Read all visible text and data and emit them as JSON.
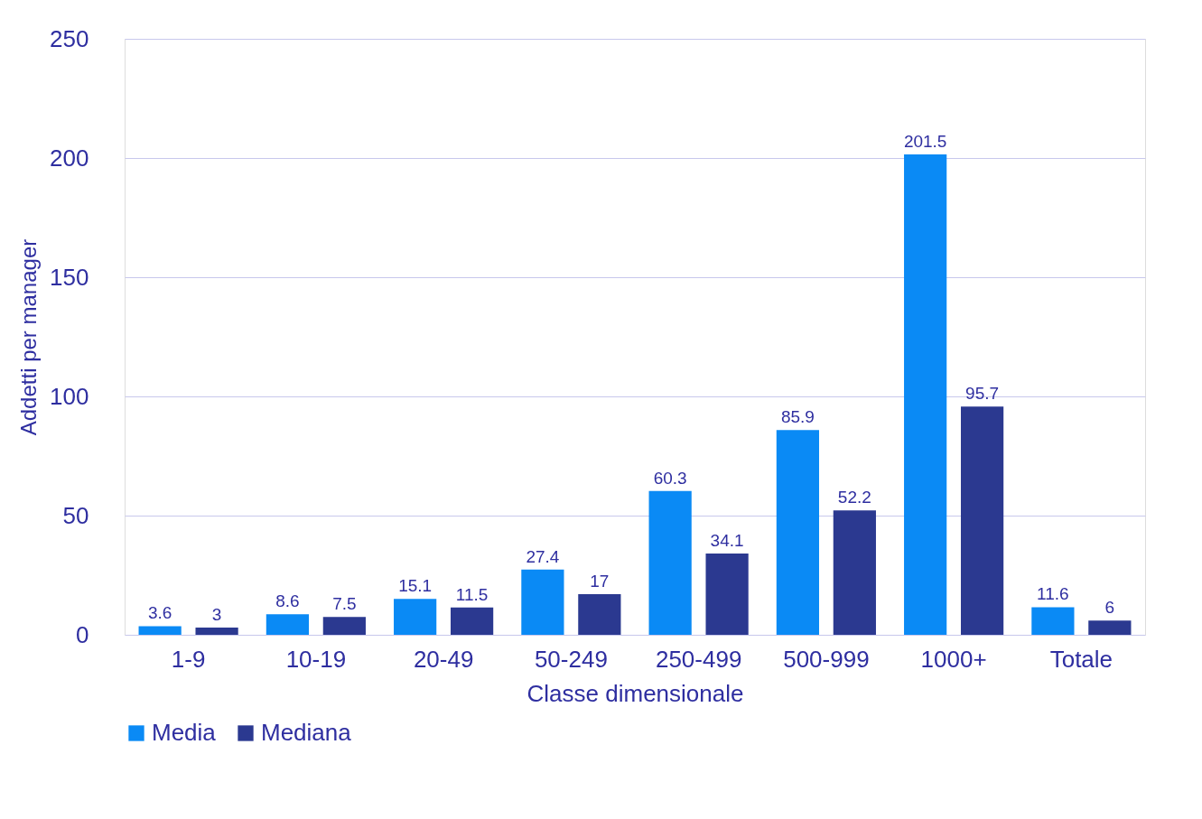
{
  "chart_data": {
    "type": "bar",
    "xlabel": "Classe dimensionale",
    "ylabel": "Addetti per manager",
    "categories": [
      "1-9",
      "10-19",
      "20-49",
      "50-249",
      "250-499",
      "500-999",
      "1000+",
      "Totale"
    ],
    "series": [
      {
        "name": "Media",
        "color": "#0a8af5",
        "values": [
          3.6,
          8.6,
          15.1,
          27.4,
          60.3,
          85.9,
          201.5,
          11.6
        ]
      },
      {
        "name": "Mediana",
        "color": "#2b3990",
        "values": [
          3,
          7.5,
          11.5,
          17,
          34.1,
          52.2,
          95.7,
          6
        ]
      }
    ],
    "ylim": [
      0,
      250
    ],
    "yticks": [
      0,
      50,
      100,
      150,
      200,
      250
    ],
    "grid": "y",
    "legend": "bottom",
    "data_labels": true
  }
}
